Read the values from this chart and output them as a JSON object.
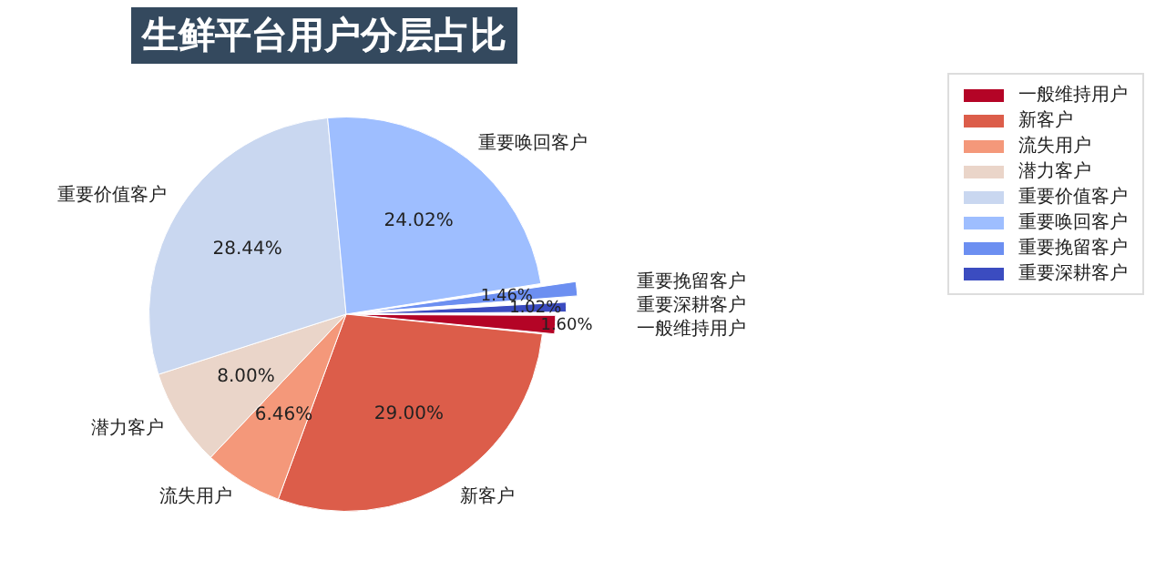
{
  "chart_data": {
    "type": "pie",
    "title": "生鲜平台用户分层占比",
    "categories": [
      "一般维持用户",
      "新客户",
      "流失用户",
      "潜力客户",
      "重要价值客户",
      "重要唤回客户",
      "重要挽留客户",
      "重要深耕客户"
    ],
    "values": [
      1.6,
      29.0,
      6.46,
      8.0,
      28.44,
      24.02,
      1.46,
      1.02
    ],
    "value_labels": [
      "1.60%",
      "29.00%",
      "6.46%",
      "8.00%",
      "28.44%",
      "24.02%",
      "1.46%",
      "1.02%"
    ],
    "colors": [
      "#b40426",
      "#dc5d4a",
      "#f4987a",
      "#ead5c9",
      "#c9d7f0",
      "#9ebeff",
      "#6c8ff1",
      "#3b4cc0"
    ],
    "legend": "top right"
  }
}
